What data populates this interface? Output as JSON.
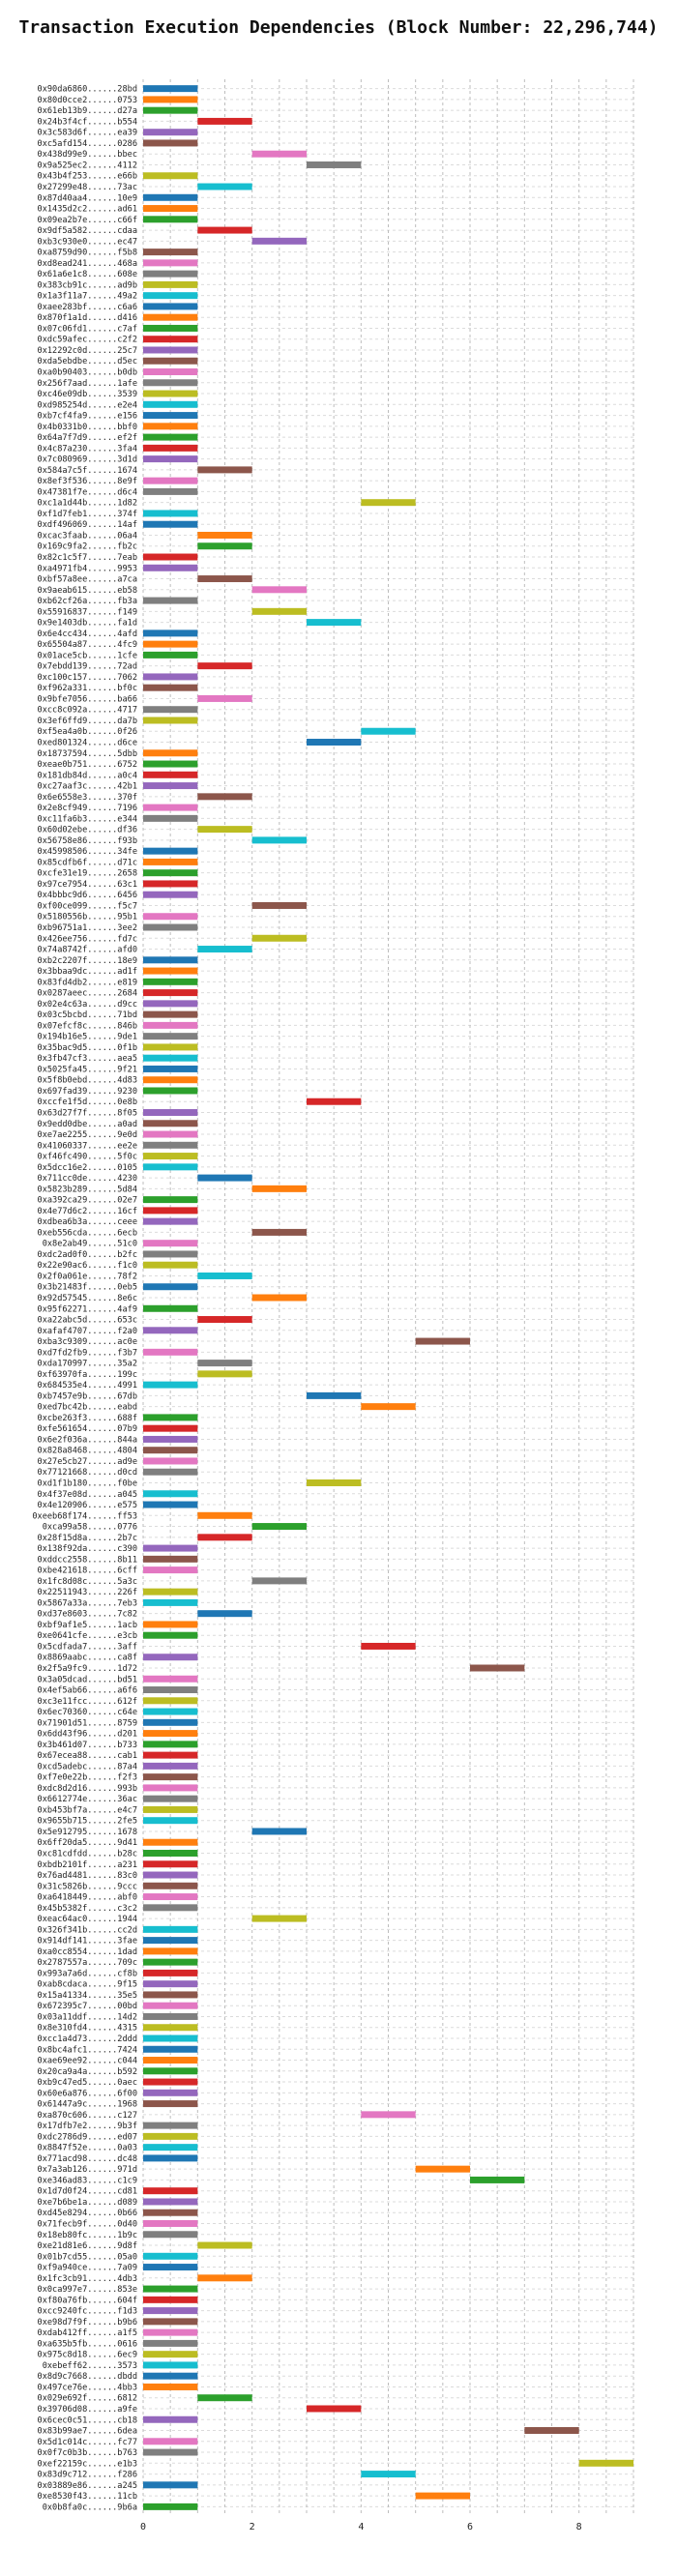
{
  "chart_data": {
    "type": "bar",
    "orientation": "horizontal",
    "title": "Transaction Execution Dependencies (Block Number: 22,296,744)",
    "xlabel": "",
    "ylabel": "",
    "xlim": [
      0,
      9
    ],
    "xticks": [
      0,
      2,
      4,
      6,
      8
    ],
    "grid": true,
    "legend": "none",
    "colors": [
      "#1f77b4",
      "#ff7f0e",
      "#2ca02c",
      "#d62728",
      "#9467bd",
      "#8c564b",
      "#e377c2",
      "#7f7f7f",
      "#bcbd22",
      "#17becf"
    ],
    "transactions": [
      {
        "hash": "0x90da6860......28bd",
        "start": 0
      },
      {
        "hash": "0x80d0cce2......0753",
        "start": 0
      },
      {
        "hash": "0x61eb13b9......d27a",
        "start": 0
      },
      {
        "hash": "0x24b3f4cf......b554",
        "start": 1
      },
      {
        "hash": "0x3c583d6f......ea39",
        "start": 0
      },
      {
        "hash": "0xc5afd154......0286",
        "start": 0
      },
      {
        "hash": "0x438d99e9......bbec",
        "start": 2
      },
      {
        "hash": "0x9a525ec2......4112",
        "start": 3
      },
      {
        "hash": "0x43b4f253......e66b",
        "start": 0
      },
      {
        "hash": "0x27299e48......73ac",
        "start": 1
      },
      {
        "hash": "0x87d40aa4......10e9",
        "start": 0
      },
      {
        "hash": "0x1435d2c2......ad61",
        "start": 0
      },
      {
        "hash": "0x09ea2b7e......c66f",
        "start": 0
      },
      {
        "hash": "0x9df5a582......cdaa",
        "start": 1
      },
      {
        "hash": "0xb3c930e0......ec47",
        "start": 2
      },
      {
        "hash": "0xa8759d90......f5b8",
        "start": 0
      },
      {
        "hash": "0xd8ead241......468a",
        "start": 0
      },
      {
        "hash": "0x61a6e1c8......608e",
        "start": 0
      },
      {
        "hash": "0x383cb91c......ad9b",
        "start": 0
      },
      {
        "hash": "0x1a3f11a7......49a2",
        "start": 0
      },
      {
        "hash": "0xaee283bf......c6a6",
        "start": 0
      },
      {
        "hash": "0x870f1a1d......d416",
        "start": 0
      },
      {
        "hash": "0x07c06fd1......c7af",
        "start": 0
      },
      {
        "hash": "0xdc59afec......c2f2",
        "start": 0
      },
      {
        "hash": "0x12292c0d......25c7",
        "start": 0
      },
      {
        "hash": "0xda5ebdbe......d5ec",
        "start": 0
      },
      {
        "hash": "0xa0b90403......b0db",
        "start": 0
      },
      {
        "hash": "0x256f7aad......1afe",
        "start": 0
      },
      {
        "hash": "0xc46e09db......3539",
        "start": 0
      },
      {
        "hash": "0xd985254d......e2e4",
        "start": 0
      },
      {
        "hash": "0xb7cf4fa9......e156",
        "start": 0
      },
      {
        "hash": "0x4b0331b0......bbf0",
        "start": 0
      },
      {
        "hash": "0x64a7f7d9......ef2f",
        "start": 0
      },
      {
        "hash": "0x4c87a230......3fa4",
        "start": 0
      },
      {
        "hash": "0x7c080969......3d1d",
        "start": 0
      },
      {
        "hash": "0x584a7c5f......1674",
        "start": 1
      },
      {
        "hash": "0x8ef3f536......8e9f",
        "start": 0
      },
      {
        "hash": "0x47381f7e......d6c4",
        "start": 0
      },
      {
        "hash": "0xc1a1d44b......1d82",
        "start": 4
      },
      {
        "hash": "0xf1d7feb1......374f",
        "start": 0
      },
      {
        "hash": "0xdf496069......14af",
        "start": 0
      },
      {
        "hash": "0xcac3faab......06a4",
        "start": 1
      },
      {
        "hash": "0x169c9fa2......fb2c",
        "start": 1
      },
      {
        "hash": "0x82c1c5f7......7eab",
        "start": 0
      },
      {
        "hash": "0xa4971fb4......9953",
        "start": 0
      },
      {
        "hash": "0xbf57a8ee......a7ca",
        "start": 1
      },
      {
        "hash": "0x9aeab615......eb58",
        "start": 2
      },
      {
        "hash": "0xb62cf26a......fb3a",
        "start": 0
      },
      {
        "hash": "0x55916837......f149",
        "start": 2
      },
      {
        "hash": "0x9e1403db......fa1d",
        "start": 3
      },
      {
        "hash": "0x6e4cc434......4afd",
        "start": 0
      },
      {
        "hash": "0x65504a87......4fc9",
        "start": 0
      },
      {
        "hash": "0x01ace5cb......1cfe",
        "start": 0
      },
      {
        "hash": "0x7ebdd139......72ad",
        "start": 1
      },
      {
        "hash": "0xc100c157......7062",
        "start": 0
      },
      {
        "hash": "0xf962a331......bf0c",
        "start": 0
      },
      {
        "hash": "0x9bfe7056......ba66",
        "start": 1
      },
      {
        "hash": "0xcc8c092a......4717",
        "start": 0
      },
      {
        "hash": "0x3ef6ffd9......da7b",
        "start": 0
      },
      {
        "hash": "0xf5ea4a0b......0f26",
        "start": 4
      },
      {
        "hash": "0xed801324......d6ce",
        "start": 3
      },
      {
        "hash": "0x18737594......5dbb",
        "start": 0
      },
      {
        "hash": "0xeae0b751......6752",
        "start": 0
      },
      {
        "hash": "0x181db84d......a0c4",
        "start": 0
      },
      {
        "hash": "0xc27aaf3c......42b1",
        "start": 0
      },
      {
        "hash": "0x6e6558e3......370f",
        "start": 1
      },
      {
        "hash": "0x2e8cf949......7196",
        "start": 0
      },
      {
        "hash": "0xc11fa6b3......e344",
        "start": 0
      },
      {
        "hash": "0x60d02ebe......df36",
        "start": 1
      },
      {
        "hash": "0x56758e86......f93b",
        "start": 2
      },
      {
        "hash": "0x45998506......34fe",
        "start": 0
      },
      {
        "hash": "0x85cdfb6f......d71c",
        "start": 0
      },
      {
        "hash": "0xcfe31e19......2658",
        "start": 0
      },
      {
        "hash": "0x97ce7954......63c1",
        "start": 0
      },
      {
        "hash": "0x4bbbc9d6......6456",
        "start": 0
      },
      {
        "hash": "0xf00ce099......f5c7",
        "start": 2
      },
      {
        "hash": "0x5180556b......95b1",
        "start": 0
      },
      {
        "hash": "0xb96751a1......3ee2",
        "start": 0
      },
      {
        "hash": "0x426ee756......fd7c",
        "start": 2
      },
      {
        "hash": "0x74a8742f......afd0",
        "start": 1
      },
      {
        "hash": "0xb2c2207f......18e9",
        "start": 0
      },
      {
        "hash": "0x3bbaa9dc......ad1f",
        "start": 0
      },
      {
        "hash": "0x83fd4db2......e819",
        "start": 0
      },
      {
        "hash": "0x0287aeec......2684",
        "start": 0
      },
      {
        "hash": "0x02e4c63a......d9cc",
        "start": 0
      },
      {
        "hash": "0x03c5bcbd......71bd",
        "start": 0
      },
      {
        "hash": "0x07efcf8c......846b",
        "start": 0
      },
      {
        "hash": "0x194b16e5......9de1",
        "start": 0
      },
      {
        "hash": "0x35bac9d5......0f1b",
        "start": 0
      },
      {
        "hash": "0x3fb47cf3......aea5",
        "start": 0
      },
      {
        "hash": "0x5025fa45......9f21",
        "start": 0
      },
      {
        "hash": "0x5f8b0ebd......4d83",
        "start": 0
      },
      {
        "hash": "0x697fad39......9230",
        "start": 0
      },
      {
        "hash": "0xccfe1f5d......0e8b",
        "start": 3
      },
      {
        "hash": "0x63d27f7f......8f05",
        "start": 0
      },
      {
        "hash": "0x9edd0dbe......a0ad",
        "start": 0
      },
      {
        "hash": "0xe7ae2255......9e0d",
        "start": 0
      },
      {
        "hash": "0x41060337......ee2e",
        "start": 0
      },
      {
        "hash": "0xf46fc490......5f0c",
        "start": 0
      },
      {
        "hash": "0x5dcc16e2......0105",
        "start": 0
      },
      {
        "hash": "0x711cc0de......4230",
        "start": 1
      },
      {
        "hash": "0x5823b289......5d84",
        "start": 2
      },
      {
        "hash": "0xa392ca29......02e7",
        "start": 0
      },
      {
        "hash": "0x4e77d6c2......16cf",
        "start": 0
      },
      {
        "hash": "0xdbea6b3a......ceee",
        "start": 0
      },
      {
        "hash": "0xeb556cda......6ecb",
        "start": 2
      },
      {
        "hash": "0x8e2ab49......51c0",
        "start": 0
      },
      {
        "hash": "0xdc2ad0f0......b2fc",
        "start": 0
      },
      {
        "hash": "0x22e90ac6......f1c0",
        "start": 0
      },
      {
        "hash": "0x2f0a061e......78f2",
        "start": 1
      },
      {
        "hash": "0x3b21483f......0eb5",
        "start": 0
      },
      {
        "hash": "0x92d57545......8e6c",
        "start": 2
      },
      {
        "hash": "0x95f62271......4af9",
        "start": 0
      },
      {
        "hash": "0xa22abc5d......653c",
        "start": 1
      },
      {
        "hash": "0xafaf4707......f2a0",
        "start": 0
      },
      {
        "hash": "0xba3c9309......ac0e",
        "start": 5
      },
      {
        "hash": "0xd7fd2fb9......f3b7",
        "start": 0
      },
      {
        "hash": "0xda170997......35a2",
        "start": 1
      },
      {
        "hash": "0xf63970fa......199c",
        "start": 1
      },
      {
        "hash": "0x684535e4......4991",
        "start": 0
      },
      {
        "hash": "0xb7457e9b......67db",
        "start": 3
      },
      {
        "hash": "0xed7bc42b......eabd",
        "start": 4
      },
      {
        "hash": "0xcbe263f3......688f",
        "start": 0
      },
      {
        "hash": "0xfe561654......07b9",
        "start": 0
      },
      {
        "hash": "0x6e2f036a......844a",
        "start": 0
      },
      {
        "hash": "0x828a8468......4804",
        "start": 0
      },
      {
        "hash": "0x27e5cb27......ad9e",
        "start": 0
      },
      {
        "hash": "0x77121668......d0cd",
        "start": 0
      },
      {
        "hash": "0xd1f1b180......f0be",
        "start": 3
      },
      {
        "hash": "0x4f37e08d......a045",
        "start": 0
      },
      {
        "hash": "0x4e120906......e575",
        "start": 0
      },
      {
        "hash": "0xeeb68f174......ff53",
        "start": 1
      },
      {
        "hash": "0xca99a58......0776",
        "start": 2
      },
      {
        "hash": "0x28f15d8a......2b7c",
        "start": 1
      },
      {
        "hash": "0x138f92da......c390",
        "start": 0
      },
      {
        "hash": "0xddcc2558......8b11",
        "start": 0
      },
      {
        "hash": "0xbe421618......6cff",
        "start": 0
      },
      {
        "hash": "0x1fc8d08c......5a3c",
        "start": 2
      },
      {
        "hash": "0x22511943......226f",
        "start": 0
      },
      {
        "hash": "0x5867a33a......7eb3",
        "start": 0
      },
      {
        "hash": "0xd37e8603......7c82",
        "start": 1
      },
      {
        "hash": "0xbf9af1e5......1acb",
        "start": 0
      },
      {
        "hash": "0xe0641cfe......e3cb",
        "start": 0
      },
      {
        "hash": "0x5cdfada7......3aff",
        "start": 4
      },
      {
        "hash": "0x8869aabc......ca8f",
        "start": 0
      },
      {
        "hash": "0x2f5a9fc9......1d72",
        "start": 6
      },
      {
        "hash": "0x3a05dcad......bd51",
        "start": 0
      },
      {
        "hash": "0x4ef5ab66......a6f6",
        "start": 0
      },
      {
        "hash": "0xc3e11fcc......612f",
        "start": 0
      },
      {
        "hash": "0x6ec70360......c64e",
        "start": 0
      },
      {
        "hash": "0x71901d51......8759",
        "start": 0
      },
      {
        "hash": "0x6dd43f96......d201",
        "start": 0
      },
      {
        "hash": "0x3b461d07......b733",
        "start": 0
      },
      {
        "hash": "0x67ecea88......cab1",
        "start": 0
      },
      {
        "hash": "0xcd5adebc......87a4",
        "start": 0
      },
      {
        "hash": "0xf7e0e22b......f2f3",
        "start": 0
      },
      {
        "hash": "0xdc8d2d16......993b",
        "start": 0
      },
      {
        "hash": "0x6612774e......36ac",
        "start": 0
      },
      {
        "hash": "0xb453bf7a......e4c7",
        "start": 0
      },
      {
        "hash": "0x9655b715......2fe5",
        "start": 0
      },
      {
        "hash": "0x5e912795......1678",
        "start": 2
      },
      {
        "hash": "0x6ff20da5......9d41",
        "start": 0
      },
      {
        "hash": "0xc81cdfdd......b28c",
        "start": 0
      },
      {
        "hash": "0xbdb2101f......a231",
        "start": 0
      },
      {
        "hash": "0x76ad4481......83c0",
        "start": 0
      },
      {
        "hash": "0x31c5826b......9ccc",
        "start": 0
      },
      {
        "hash": "0xa6418449......abf0",
        "start": 0
      },
      {
        "hash": "0x45b5382f......c3c2",
        "start": 0
      },
      {
        "hash": "0xeac64ac0......1944",
        "start": 2
      },
      {
        "hash": "0x326f341b......cc2d",
        "start": 0
      },
      {
        "hash": "0x914df141......3fae",
        "start": 0
      },
      {
        "hash": "0xa0cc8554......1dad",
        "start": 0
      },
      {
        "hash": "0x2787557a......709c",
        "start": 0
      },
      {
        "hash": "0x993a7a6d......cf8b",
        "start": 0
      },
      {
        "hash": "0xab8cdaca......9f15",
        "start": 0
      },
      {
        "hash": "0x15a41334......35e5",
        "start": 0
      },
      {
        "hash": "0x672395c7......00bd",
        "start": 0
      },
      {
        "hash": "0x03a11ddf......14d2",
        "start": 0
      },
      {
        "hash": "0x8e310fd4......4315",
        "start": 0
      },
      {
        "hash": "0xcc1a4d73......2ddd",
        "start": 0
      },
      {
        "hash": "0x8bc4afc1......7424",
        "start": 0
      },
      {
        "hash": "0xae69ee92......c044",
        "start": 0
      },
      {
        "hash": "0x20ca9a4a......b592",
        "start": 0
      },
      {
        "hash": "0xb9c47ed5......0aec",
        "start": 0
      },
      {
        "hash": "0x60e6a876......6f00",
        "start": 0
      },
      {
        "hash": "0x61447a9c......1968",
        "start": 0
      },
      {
        "hash": "0xa870c606......c127",
        "start": 4
      },
      {
        "hash": "0x17dfb7e2......9b3f",
        "start": 0
      },
      {
        "hash": "0xdc2786d9......ed07",
        "start": 0
      },
      {
        "hash": "0x8847f52e......0a03",
        "start": 0
      },
      {
        "hash": "0x771acd98......dc48",
        "start": 0
      },
      {
        "hash": "0x7a3ab126......971d",
        "start": 5
      },
      {
        "hash": "0xe346ad83......c1c9",
        "start": 6
      },
      {
        "hash": "0x1d7d0f24......cd81",
        "start": 0
      },
      {
        "hash": "0xe7b6be1a......d089",
        "start": 0
      },
      {
        "hash": "0xd45e8294......0b66",
        "start": 0
      },
      {
        "hash": "0x71fecb9f......0d40",
        "start": 0
      },
      {
        "hash": "0x18eb80fc......1b9c",
        "start": 0
      },
      {
        "hash": "0xe21d81e6......9d8f",
        "start": 1
      },
      {
        "hash": "0x01b7cd55......05a0",
        "start": 0
      },
      {
        "hash": "0xf9a940ce......7a09",
        "start": 0
      },
      {
        "hash": "0x1fc3cb91......4db3",
        "start": 1
      },
      {
        "hash": "0x0ca997e7......853e",
        "start": 0
      },
      {
        "hash": "0xf80a76fb......604f",
        "start": 0
      },
      {
        "hash": "0xcc9240fc......f1d3",
        "start": 0
      },
      {
        "hash": "0xe98d7f9f......b9b6",
        "start": 0
      },
      {
        "hash": "0xdab412ff......a1f5",
        "start": 0
      },
      {
        "hash": "0xa635b5fb......0616",
        "start": 0
      },
      {
        "hash": "0x975c8d18......6ec9",
        "start": 0
      },
      {
        "hash": "0xebeff62......3573",
        "start": 0
      },
      {
        "hash": "0x8d9c7668......dbdd",
        "start": 0
      },
      {
        "hash": "0x497ce76e......4bb3",
        "start": 0
      },
      {
        "hash": "0x029e692f......6812",
        "start": 1
      },
      {
        "hash": "0x39706d08......a9fe",
        "start": 3
      },
      {
        "hash": "0x6cec0c51......cb18",
        "start": 0
      },
      {
        "hash": "0x83b99ae7......6dea",
        "start": 7
      },
      {
        "hash": "0x5d1c014c......fc77",
        "start": 0
      },
      {
        "hash": "0x0f7c0b3b......b763",
        "start": 0
      },
      {
        "hash": "0xef22159c......e1b3",
        "start": 8
      },
      {
        "hash": "0x83d9c712......f286",
        "start": 4
      },
      {
        "hash": "0x03889e86......a245",
        "start": 0
      },
      {
        "hash": "0xe8530f43......11cb",
        "start": 5
      },
      {
        "hash": "0x0b8fa0c......9b6a",
        "start": 0
      }
    ],
    "duration": 1
  }
}
